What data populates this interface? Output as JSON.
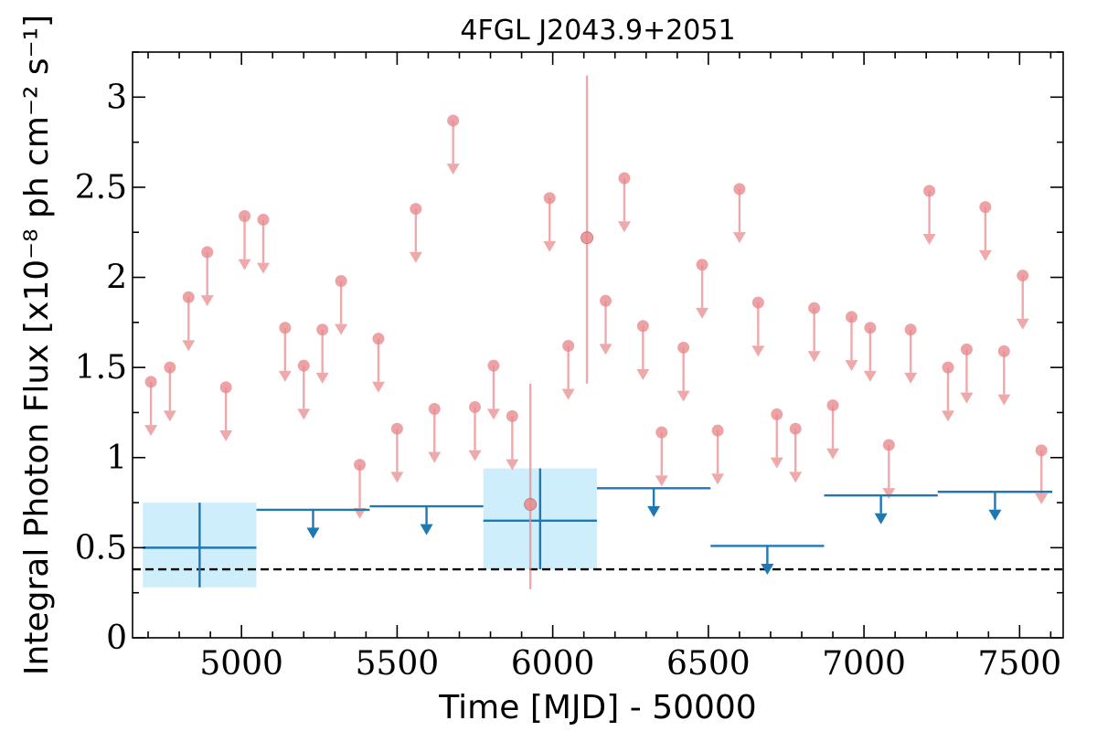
{
  "chart_data": {
    "type": "scatter",
    "title": "4FGL J2043.9+2051",
    "xlabel": "Time [MJD] - 50000",
    "ylabel": "Integral Photon Flux [x10⁻⁸ ph cm⁻² s⁻¹]",
    "xlim": [
      4650,
      7640
    ],
    "ylim": [
      0,
      3.25
    ],
    "xticks": [
      5000,
      5500,
      6000,
      6500,
      7000,
      7500
    ],
    "xtick_labels": [
      "5000",
      "5500",
      "6000",
      "6500",
      "7000",
      "7500"
    ],
    "yticks": [
      0,
      0.5,
      1,
      1.5,
      2,
      2.5,
      3
    ],
    "ytick_labels": [
      "0",
      "0.5",
      "1",
      "1.5",
      "2",
      "2.5",
      "3"
    ],
    "reference_line": {
      "y": 0.38,
      "style": "dashed",
      "color": "#000000"
    },
    "colors": {
      "short_bins": "#e8898c",
      "long_bins": "#1f77b4",
      "uncertainty_band": "#cfeefb"
    },
    "series": [
      {
        "bin": "short",
        "upper_limits": [
          [
            4709,
            1.42
          ],
          [
            4770,
            1.5
          ],
          [
            4830,
            1.89
          ],
          [
            4890,
            2.14
          ],
          [
            4950,
            1.39
          ],
          [
            5010,
            2.34
          ],
          [
            5070,
            2.32
          ],
          [
            5140,
            1.72
          ],
          [
            5200,
            1.51
          ],
          [
            5260,
            1.71
          ],
          [
            5320,
            1.98
          ],
          [
            5380,
            0.96
          ],
          [
            5440,
            1.66
          ],
          [
            5500,
            1.16
          ],
          [
            5560,
            2.38
          ],
          [
            5620,
            1.27
          ],
          [
            5680,
            2.87
          ],
          [
            5750,
            1.28
          ],
          [
            5810,
            1.51
          ],
          [
            5870,
            1.23
          ],
          [
            5990,
            2.44
          ],
          [
            6050,
            1.62
          ],
          [
            6170,
            1.87
          ],
          [
            6230,
            2.55
          ],
          [
            6290,
            1.73
          ],
          [
            6350,
            1.14
          ],
          [
            6420,
            1.61
          ],
          [
            6480,
            2.07
          ],
          [
            6530,
            1.15
          ],
          [
            6600,
            2.49
          ],
          [
            6660,
            1.86
          ],
          [
            6720,
            1.24
          ],
          [
            6780,
            1.16
          ],
          [
            6840,
            1.83
          ],
          [
            6900,
            1.29
          ],
          [
            6960,
            1.78
          ],
          [
            7020,
            1.72
          ],
          [
            7080,
            1.07
          ],
          [
            7150,
            1.71
          ],
          [
            7210,
            2.48
          ],
          [
            7270,
            1.5
          ],
          [
            7330,
            1.6
          ],
          [
            7390,
            2.39
          ],
          [
            7450,
            1.59
          ],
          [
            7510,
            2.01
          ],
          [
            7570,
            1.04
          ]
        ],
        "detections": [
          {
            "x": 5928,
            "y": 0.74,
            "yerr_low": 0.47,
            "yerr_high": 0.67
          },
          {
            "x": 6110,
            "y": 2.22,
            "yerr_low": 0.81,
            "yerr_high": 0.9
          }
        ]
      },
      {
        "bin": "long",
        "upper_limits": [
          {
            "x0": 5048,
            "x1": 5412,
            "y": 0.71
          },
          {
            "x0": 5412,
            "x1": 5777,
            "y": 0.73
          },
          {
            "x0": 6142,
            "x1": 6507,
            "y": 0.83
          },
          {
            "x0": 6507,
            "x1": 6872,
            "y": 0.51
          },
          {
            "x0": 6872,
            "x1": 7237,
            "y": 0.79
          },
          {
            "x0": 7237,
            "x1": 7605,
            "y": 0.81
          }
        ],
        "detections": [
          {
            "x0": 4683,
            "x1": 5048,
            "y": 0.5,
            "ylo": 0.28,
            "yhi": 0.75
          },
          {
            "x0": 5777,
            "x1": 6142,
            "y": 0.65,
            "ylo": 0.38,
            "yhi": 0.94
          }
        ]
      }
    ]
  }
}
